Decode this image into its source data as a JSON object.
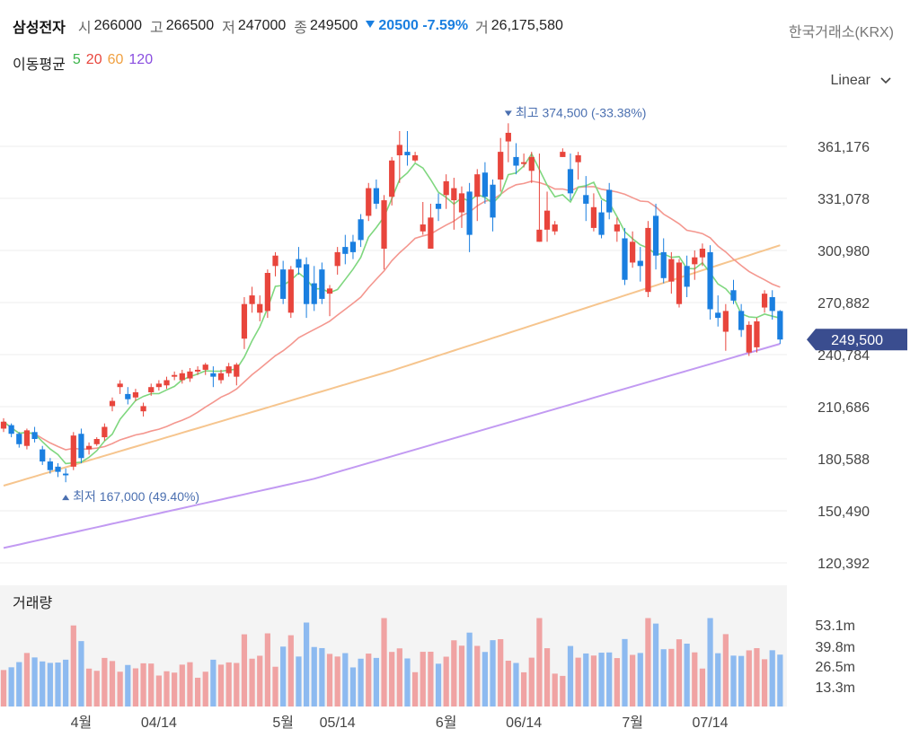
{
  "header": {
    "name": "삼성전자",
    "open_label": "시",
    "open": "266000",
    "high_label": "고",
    "high": "266500",
    "low_label": "저",
    "low": "247000",
    "close_label": "종",
    "close": "249500",
    "change": "20500",
    "change_pct": "-7.59%",
    "volume_label": "거",
    "volume": "26,175,580",
    "exchange": "한국거래소(KRX)"
  },
  "ma_legend": {
    "title": "이동평균",
    "items": [
      {
        "label": "5",
        "color": "#3cb44b"
      },
      {
        "label": "20",
        "color": "#e8453c"
      },
      {
        "label": "60",
        "color": "#f0a040"
      },
      {
        "label": "120",
        "color": "#8a4ee0"
      }
    ]
  },
  "scale_select": {
    "value": "Linear",
    "icon": "chevron-down-icon"
  },
  "colors": {
    "up": "#e8453c",
    "down": "#1a7fe0"
  },
  "chart_data": {
    "type": "candlestick",
    "price_axis": {
      "ticks": [
        "361,176",
        "331,078",
        "300,980",
        "270,882",
        "240,784",
        "210,686",
        "180,588",
        "150,490",
        "120,392"
      ],
      "values": [
        361176,
        331078,
        300980,
        270882,
        240784,
        210686,
        180588,
        150490,
        120392
      ]
    },
    "current_price": "249,500",
    "annotations": {
      "high": {
        "text": "최고 374,500 (-33.38%)",
        "value": 374500
      },
      "low": {
        "text": "최저 167,000 (49.40%)",
        "value": 167000
      }
    },
    "x_labels": [
      {
        "label": "4월",
        "i": 7
      },
      {
        "label": "04/14",
        "i": 14
      },
      {
        "label": "5월",
        "i": 25
      },
      {
        "label": "05/14",
        "i": 30
      },
      {
        "label": "6월",
        "i": 40
      },
      {
        "label": "06/14",
        "i": 47
      },
      {
        "label": "7월",
        "i": 57
      },
      {
        "label": "07/14",
        "i": 64
      }
    ],
    "volume_panel": {
      "title": "거래량",
      "ticks": [
        "53.1m",
        "39.8m",
        "26.5m",
        "13.3m"
      ],
      "tick_values": [
        53.1,
        39.8,
        26.5,
        13.3
      ]
    },
    "candles": [
      [
        198000,
        204000,
        196000,
        202000
      ],
      [
        200000,
        201000,
        193000,
        195000
      ],
      [
        195000,
        196000,
        187000,
        189000
      ],
      [
        188000,
        198000,
        186000,
        197000
      ],
      [
        196000,
        199000,
        190000,
        192000
      ],
      [
        186000,
        188000,
        177000,
        179000
      ],
      [
        179000,
        181000,
        172000,
        174000
      ],
      [
        176000,
        178000,
        170000,
        173000
      ],
      [
        172000,
        175000,
        167000,
        171000
      ],
      [
        176000,
        196000,
        174000,
        194000
      ],
      [
        195000,
        198000,
        178000,
        181000
      ],
      [
        186000,
        190000,
        183000,
        188000
      ],
      [
        189000,
        193000,
        188000,
        192000
      ],
      [
        193000,
        201000,
        191000,
        199000
      ],
      [
        211000,
        216000,
        208000,
        214000
      ],
      [
        222000,
        226000,
        218000,
        224000
      ],
      [
        218000,
        222000,
        212000,
        215000
      ],
      [
        216000,
        221000,
        214000,
        219000
      ],
      [
        208000,
        213000,
        205000,
        211000
      ],
      [
        219000,
        224000,
        217000,
        222000
      ],
      [
        222000,
        226000,
        220000,
        224000
      ],
      [
        223000,
        228000,
        221000,
        226000
      ],
      [
        228000,
        231000,
        226000,
        229000
      ],
      [
        226000,
        232000,
        224000,
        230000
      ],
      [
        227000,
        233000,
        225000,
        231000
      ],
      [
        231000,
        234000,
        229000,
        232000
      ],
      [
        232000,
        236000,
        229000,
        235000
      ],
      [
        230000,
        234000,
        222000,
        228000
      ],
      [
        226000,
        232000,
        224000,
        230000
      ],
      [
        230000,
        236000,
        228000,
        234000
      ],
      [
        228000,
        236000,
        223000,
        235000
      ],
      [
        250000,
        274000,
        244000,
        270000
      ],
      [
        270000,
        280000,
        265000,
        275000
      ],
      [
        265000,
        275000,
        260000,
        270000
      ],
      [
        266000,
        290000,
        262000,
        288000
      ],
      [
        292000,
        300000,
        286000,
        298000
      ],
      [
        290000,
        295000,
        270000,
        273000
      ],
      [
        265000,
        292000,
        262000,
        290000
      ],
      [
        296000,
        303000,
        287000,
        291000
      ],
      [
        293000,
        297000,
        262000,
        270000
      ],
      [
        282000,
        292000,
        266000,
        270000
      ],
      [
        290000,
        294000,
        270000,
        273000
      ],
      [
        276000,
        281000,
        263000,
        279000
      ],
      [
        292000,
        303000,
        287000,
        300000
      ],
      [
        303000,
        310000,
        293000,
        299000
      ],
      [
        306000,
        310000,
        296000,
        300000
      ],
      [
        319000,
        322000,
        303000,
        307000
      ],
      [
        321000,
        340000,
        318000,
        337000
      ],
      [
        337000,
        342000,
        325000,
        328000
      ],
      [
        302000,
        333000,
        290000,
        330000
      ],
      [
        332000,
        355000,
        327000,
        353000
      ],
      [
        356000,
        370000,
        340000,
        362000
      ],
      [
        358000,
        370000,
        350000,
        356000
      ],
      [
        353000,
        358000,
        352000,
        356000
      ],
      [
        312000,
        329000,
        310000,
        316000
      ],
      [
        302000,
        328000,
        302000,
        320000
      ],
      [
        328000,
        334000,
        318000,
        325000
      ],
      [
        333000,
        345000,
        325000,
        341000
      ],
      [
        330000,
        343000,
        313000,
        337000
      ],
      [
        323000,
        338000,
        314000,
        334000
      ],
      [
        335000,
        340000,
        300000,
        310000
      ],
      [
        332000,
        348000,
        318000,
        345000
      ],
      [
        346000,
        352000,
        328000,
        332000
      ],
      [
        339000,
        342000,
        312000,
        320000
      ],
      [
        342000,
        366000,
        335000,
        358000
      ],
      [
        364000,
        374500,
        352000,
        369000
      ],
      [
        355000,
        363000,
        345000,
        350000
      ],
      [
        351000,
        357000,
        349000,
        352000
      ],
      [
        347000,
        358000,
        340000,
        355000
      ],
      [
        306000,
        357000,
        306000,
        313000
      ],
      [
        313000,
        335000,
        306000,
        324000
      ],
      [
        312000,
        318000,
        310000,
        316000
      ],
      [
        355000,
        360000,
        355000,
        358000
      ],
      [
        348000,
        357000,
        330000,
        334000
      ],
      [
        352000,
        358000,
        342000,
        356000
      ],
      [
        333000,
        344000,
        318000,
        328000
      ],
      [
        314000,
        334000,
        312000,
        326000
      ],
      [
        323000,
        330000,
        308000,
        310000
      ],
      [
        336000,
        340000,
        319000,
        323000
      ],
      [
        312000,
        320000,
        306000,
        316000
      ],
      [
        308000,
        314000,
        281000,
        284000
      ],
      [
        294000,
        312000,
        291000,
        306000
      ],
      [
        295000,
        303000,
        283000,
        292000
      ],
      [
        277000,
        318000,
        274000,
        314000
      ],
      [
        321000,
        328000,
        290000,
        298000
      ],
      [
        300000,
        308000,
        282000,
        285000
      ],
      [
        283000,
        300000,
        276000,
        296000
      ],
      [
        270000,
        296000,
        268000,
        294000
      ],
      [
        292000,
        298000,
        274000,
        280000
      ],
      [
        293000,
        301000,
        284000,
        297000
      ],
      [
        297000,
        305000,
        292000,
        302000
      ],
      [
        300000,
        304000,
        261000,
        267000
      ],
      [
        265000,
        275000,
        257000,
        262000
      ],
      [
        254000,
        270000,
        243000,
        266000
      ],
      [
        278000,
        284000,
        270000,
        272000
      ],
      [
        266000,
        270000,
        251000,
        255000
      ],
      [
        242000,
        260000,
        240000,
        258000
      ],
      [
        245000,
        262000,
        242000,
        260000
      ],
      [
        268000,
        278000,
        265000,
        276000
      ],
      [
        274000,
        278000,
        261000,
        266000
      ],
      [
        266000,
        266500,
        247000,
        249500
      ]
    ]
  }
}
